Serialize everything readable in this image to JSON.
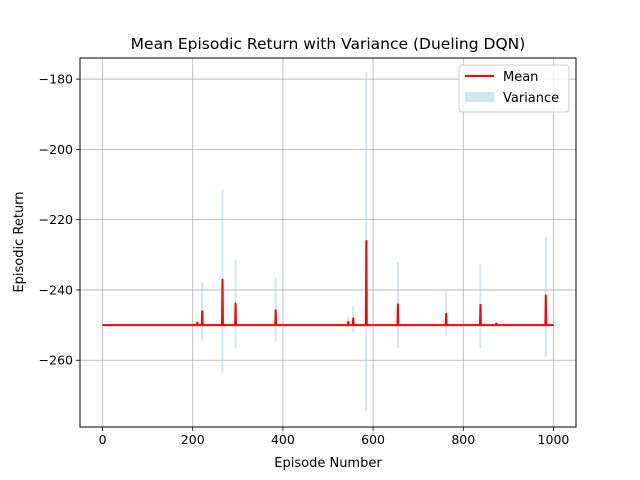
{
  "chart_data": {
    "type": "line",
    "title": "Mean Episodic Return with Variance (Dueling DQN)",
    "xlabel": "Episode Number",
    "ylabel": "Episodic Return",
    "xlim": [
      -50,
      1050
    ],
    "ylim": [
      -279,
      -174
    ],
    "xticks": [
      0,
      200,
      400,
      600,
      800,
      1000
    ],
    "yticks": [
      -260,
      -240,
      -220,
      -200,
      -180
    ],
    "grid": true,
    "legend_position": "top-right",
    "baseline": -250,
    "x_start": 0,
    "x_end": 1000,
    "series": [
      {
        "name": "Mean",
        "color": "#ff0000",
        "spikes": [
          {
            "x": 210,
            "y": -249.2
          },
          {
            "x": 221,
            "y": -246
          },
          {
            "x": 266,
            "y": -237
          },
          {
            "x": 295,
            "y": -243.8
          },
          {
            "x": 384,
            "y": -245.7
          },
          {
            "x": 545,
            "y": -249
          },
          {
            "x": 556,
            "y": -248
          },
          {
            "x": 585,
            "y": -226
          },
          {
            "x": 655,
            "y": -244
          },
          {
            "x": 762,
            "y": -246.7
          },
          {
            "x": 838,
            "y": -244.2
          },
          {
            "x": 873,
            "y": -249.5
          },
          {
            "x": 983,
            "y": -241.5
          }
        ]
      },
      {
        "name": "Variance",
        "color": "#add8e6",
        "bands": [
          {
            "x": 221,
            "low": -254.5,
            "high": -238
          },
          {
            "x": 266,
            "low": -263.5,
            "high": -211.5
          },
          {
            "x": 295,
            "low": -256.5,
            "high": -231.5
          },
          {
            "x": 384,
            "low": -254.5,
            "high": -236.5
          },
          {
            "x": 545,
            "low": -251,
            "high": -247.5
          },
          {
            "x": 556,
            "low": -252,
            "high": -244.5
          },
          {
            "x": 585,
            "low": -274.5,
            "high": -178
          },
          {
            "x": 655,
            "low": -256.5,
            "high": -232
          },
          {
            "x": 762,
            "low": -253,
            "high": -240.5
          },
          {
            "x": 838,
            "low": -256.5,
            "high": -232.5
          },
          {
            "x": 983,
            "low": -259,
            "high": -225
          }
        ]
      }
    ]
  }
}
